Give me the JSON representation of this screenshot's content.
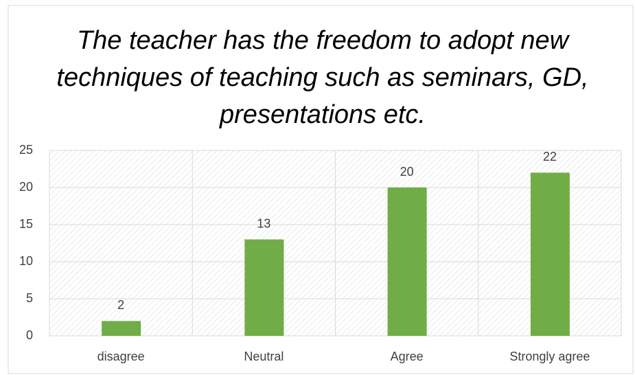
{
  "chart_data": {
    "type": "bar",
    "title": "The teacher has the freedom to adopt new techniques of teaching such as seminars, GD, presentations etc.",
    "categories": [
      "disagree",
      "Neutral",
      "Agree",
      "Strongly agree"
    ],
    "values": [
      2,
      13,
      20,
      22
    ],
    "color": "#70ad47",
    "ylim": [
      0,
      25
    ],
    "yticks": [
      0,
      5,
      10,
      15,
      20,
      25
    ],
    "grid": true
  }
}
